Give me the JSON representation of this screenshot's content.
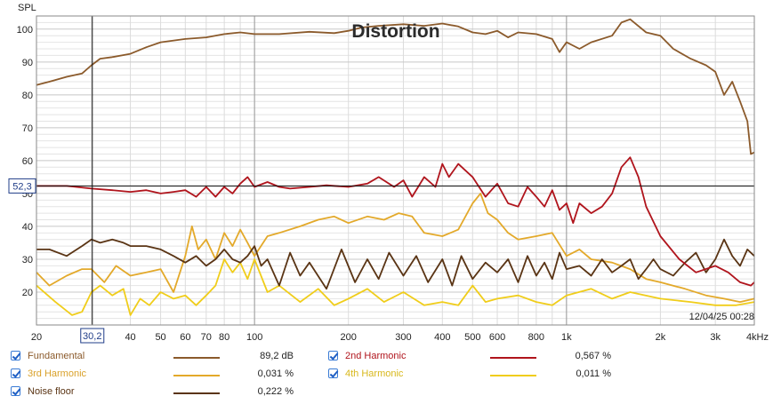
{
  "chart_data": {
    "type": "line",
    "title": "Distortion",
    "ylabel": "SPL",
    "xlabel": "",
    "x_scale": "log",
    "xlim": [
      20,
      4000
    ],
    "ylim": [
      10,
      104
    ],
    "x_ticks": [
      {
        "v": 20,
        "label": "20"
      },
      {
        "v": 30.2,
        "label": "30,2"
      },
      {
        "v": 40,
        "label": "40"
      },
      {
        "v": 50,
        "label": "50"
      },
      {
        "v": 60,
        "label": "60"
      },
      {
        "v": 70,
        "label": "70"
      },
      {
        "v": 80,
        "label": "80"
      },
      {
        "v": 100,
        "label": "100"
      },
      {
        "v": 200,
        "label": "200"
      },
      {
        "v": 300,
        "label": "300"
      },
      {
        "v": 400,
        "label": "400"
      },
      {
        "v": 500,
        "label": "500"
      },
      {
        "v": 600,
        "label": "600"
      },
      {
        "v": 800,
        "label": "800"
      },
      {
        "v": 1000,
        "label": "1k"
      },
      {
        "v": 2000,
        "label": "2k"
      },
      {
        "v": 3000,
        "label": "3k"
      },
      {
        "v": 4000,
        "label": "4kHz"
      }
    ],
    "y_ticks": [
      20,
      30,
      40,
      50,
      60,
      70,
      80,
      90,
      100
    ],
    "cursor": {
      "x": 30.2,
      "y": 52.3,
      "x_label": "30,2",
      "y_label": "52,3"
    },
    "timestamp": "12/04/25 00:28",
    "series": [
      {
        "name": "Fundamental",
        "color": "#8b5a2b",
        "legend_value": "89,2 dB",
        "x": [
          20,
          22,
          25,
          28,
          30,
          32,
          35,
          40,
          45,
          50,
          60,
          70,
          80,
          90,
          100,
          120,
          150,
          180,
          200,
          220,
          250,
          300,
          350,
          400,
          450,
          500,
          550,
          600,
          650,
          700,
          800,
          900,
          950,
          1000,
          1100,
          1200,
          1400,
          1500,
          1600,
          1800,
          2000,
          2200,
          2500,
          2800,
          3000,
          3200,
          3400,
          3600,
          3800,
          3900,
          4000
        ],
        "y": [
          83,
          84,
          85.5,
          86.5,
          89,
          91,
          91.5,
          92.5,
          94.5,
          96,
          97,
          97.5,
          98.5,
          99,
          98.5,
          98.5,
          99.2,
          98.8,
          99.5,
          100.5,
          101,
          101.5,
          101,
          101.7,
          100.8,
          99,
          98.5,
          99.5,
          97.5,
          99,
          98.5,
          97,
          93,
          96,
          94,
          96,
          98,
          102,
          103,
          99,
          98,
          94,
          91,
          89,
          87,
          80,
          84,
          78,
          72,
          62,
          62.5
        ]
      },
      {
        "name": "2nd Harmonic",
        "color": "#b0141c",
        "legend_value": "0,567 %",
        "x": [
          20,
          25,
          30,
          35,
          40,
          45,
          50,
          55,
          60,
          65,
          70,
          75,
          80,
          85,
          90,
          95,
          100,
          110,
          120,
          130,
          150,
          170,
          200,
          230,
          250,
          280,
          300,
          320,
          350,
          380,
          400,
          420,
          450,
          500,
          550,
          600,
          650,
          700,
          750,
          800,
          850,
          900,
          950,
          1000,
          1050,
          1100,
          1200,
          1300,
          1400,
          1500,
          1600,
          1700,
          1800,
          2000,
          2300,
          2600,
          3000,
          3300,
          3600,
          3900,
          4000
        ],
        "y": [
          52.3,
          52.3,
          51.5,
          51,
          50.5,
          51,
          50,
          50.5,
          51,
          49,
          52,
          49,
          52,
          50,
          53,
          55,
          52,
          53.5,
          52,
          51.5,
          52,
          52.5,
          52,
          53,
          55,
          52,
          54,
          49,
          55,
          52,
          59,
          55,
          59,
          55,
          49,
          53,
          47,
          46,
          52,
          49,
          46,
          51,
          45,
          47,
          41,
          47,
          44,
          46,
          50,
          58,
          61,
          55,
          46,
          37,
          30,
          26,
          28,
          26,
          23,
          22,
          23
        ]
      },
      {
        "name": "3rd Harmonic",
        "color": "#e3a92a",
        "legend_value": "0,031 %",
        "x": [
          20,
          22,
          25,
          28,
          30,
          33,
          36,
          40,
          45,
          50,
          55,
          60,
          63,
          66,
          70,
          75,
          80,
          85,
          90,
          95,
          100,
          110,
          120,
          140,
          160,
          180,
          200,
          230,
          260,
          290,
          320,
          350,
          400,
          450,
          500,
          530,
          560,
          600,
          650,
          700,
          800,
          900,
          1000,
          1100,
          1200,
          1400,
          1600,
          1800,
          2000,
          2400,
          2800,
          3200,
          3600,
          4000
        ],
        "y": [
          26,
          22,
          25,
          27,
          27,
          23,
          28,
          25,
          26,
          27,
          20,
          31,
          40,
          33,
          36,
          30,
          38,
          34,
          39,
          35,
          31,
          37,
          38,
          40,
          42,
          43,
          41,
          43,
          42,
          44,
          43,
          38,
          37,
          39,
          47,
          50,
          44,
          42,
          38,
          36,
          37,
          38,
          31,
          33,
          30,
          29,
          27,
          24,
          23,
          21,
          19,
          18,
          17,
          18
        ]
      },
      {
        "name": "4th Harmonic",
        "color": "#f0cd1a",
        "legend_value": "0,011 %",
        "x": [
          20,
          23,
          26,
          28,
          30,
          32,
          35,
          38,
          40,
          43,
          46,
          50,
          55,
          60,
          65,
          70,
          75,
          80,
          85,
          90,
          95,
          100,
          110,
          120,
          140,
          160,
          180,
          200,
          230,
          260,
          300,
          350,
          400,
          450,
          500,
          550,
          600,
          700,
          800,
          900,
          1000,
          1200,
          1400,
          1600,
          2000,
          2500,
          3000,
          3500,
          4000
        ],
        "y": [
          22,
          17,
          13,
          14,
          20,
          22,
          19,
          21,
          13,
          18,
          16,
          20,
          18,
          19,
          16,
          19,
          22,
          30,
          26,
          29,
          24,
          30,
          20,
          22,
          17,
          21,
          16,
          18,
          21,
          17,
          20,
          16,
          17,
          16,
          22,
          17,
          18,
          19,
          17,
          16,
          19,
          21,
          18,
          20,
          18,
          17,
          16,
          16,
          17
        ]
      },
      {
        "name": "Noise floor",
        "color": "#5a3414",
        "legend_value": "0,222 %",
        "x": [
          20,
          22,
          25,
          28,
          30,
          32,
          35,
          38,
          40,
          45,
          50,
          55,
          60,
          65,
          70,
          75,
          80,
          85,
          90,
          95,
          100,
          105,
          110,
          120,
          130,
          140,
          150,
          170,
          190,
          210,
          230,
          250,
          270,
          300,
          330,
          360,
          400,
          430,
          460,
          500,
          550,
          600,
          650,
          700,
          750,
          800,
          850,
          900,
          950,
          1000,
          1100,
          1200,
          1300,
          1400,
          1500,
          1600,
          1700,
          1800,
          1900,
          2000,
          2200,
          2400,
          2600,
          2800,
          3000,
          3200,
          3400,
          3600,
          3800,
          4000
        ],
        "y": [
          33,
          33,
          31,
          34,
          36,
          35,
          36,
          35,
          34,
          34,
          33,
          31,
          29,
          31,
          28,
          30,
          33,
          30,
          29,
          31,
          34,
          28,
          30,
          22,
          32,
          25,
          29,
          21,
          33,
          23,
          30,
          24,
          32,
          25,
          31,
          23,
          30,
          22,
          31,
          24,
          29,
          26,
          30,
          23,
          31,
          25,
          29,
          24,
          32,
          27,
          28,
          25,
          30,
          26,
          28,
          30,
          24,
          27,
          30,
          27,
          25,
          29,
          32,
          26,
          30,
          36,
          31,
          28,
          33,
          31
        ]
      }
    ]
  }
}
